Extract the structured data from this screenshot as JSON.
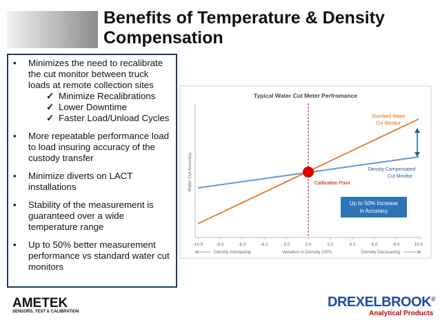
{
  "header": {
    "title": "Benefits of Temperature & Density Compensation"
  },
  "bullets": [
    {
      "text": "Minimizes the need to recalibrate the cut monitor between truck loads at remote collection sites",
      "checks": [
        "Minimize Recalibrations",
        "Lower Downtime",
        "Faster Load/Unload Cycles"
      ]
    },
    {
      "text": "More repeatable performance load to load insuring accuracy of the custody transfer"
    },
    {
      "text": "Minimize diverts on LACT installations"
    },
    {
      "text": "Stability of the measurement is guaranteed over a wide temperature range"
    },
    {
      "text": "Up to 50% better measurement performance vs standard water cut monitors"
    }
  ],
  "chart_data": {
    "type": "line",
    "title": "Typical Water Cut Meter Perfromance",
    "y_label": "Water Cut Accuracy",
    "x_label": "Variation in Density (API)",
    "x_left_label": "Density Increasing",
    "x_right_label": "Density Decreasing",
    "xlim": [
      -10,
      10
    ],
    "xticks": [
      {
        "value": -10,
        "label": "-10.0"
      },
      {
        "value": -8,
        "label": "-8.0"
      },
      {
        "value": -6,
        "label": "-6.0"
      },
      {
        "value": -4,
        "label": "-4.0"
      },
      {
        "value": -2,
        "label": "-2.0"
      },
      {
        "value": 0,
        "label": "0.0"
      },
      {
        "value": 2,
        "label": "2.0"
      },
      {
        "value": 4,
        "label": "4.0"
      },
      {
        "value": 6,
        "label": "6.0"
      },
      {
        "value": 8,
        "label": "8.0"
      },
      {
        "value": 10,
        "label": "10.0"
      }
    ],
    "annotations": {
      "standard": [
        "Standard Water",
        "Cut Monitor"
      ],
      "compensated": [
        "Density Compensated",
        "Cut Monitor"
      ],
      "calibration": "Calibration Point",
      "callout": [
        "Up to 50% Increase",
        "in Accuracy"
      ]
    }
  },
  "footer": {
    "left_logo": "AMETEK",
    "left_tagline": "SENSORS, TEST & CALIBRATION",
    "right_logo": "DREXELBROOK",
    "right_mark": "®",
    "right_tagline": "Analytical Products"
  }
}
